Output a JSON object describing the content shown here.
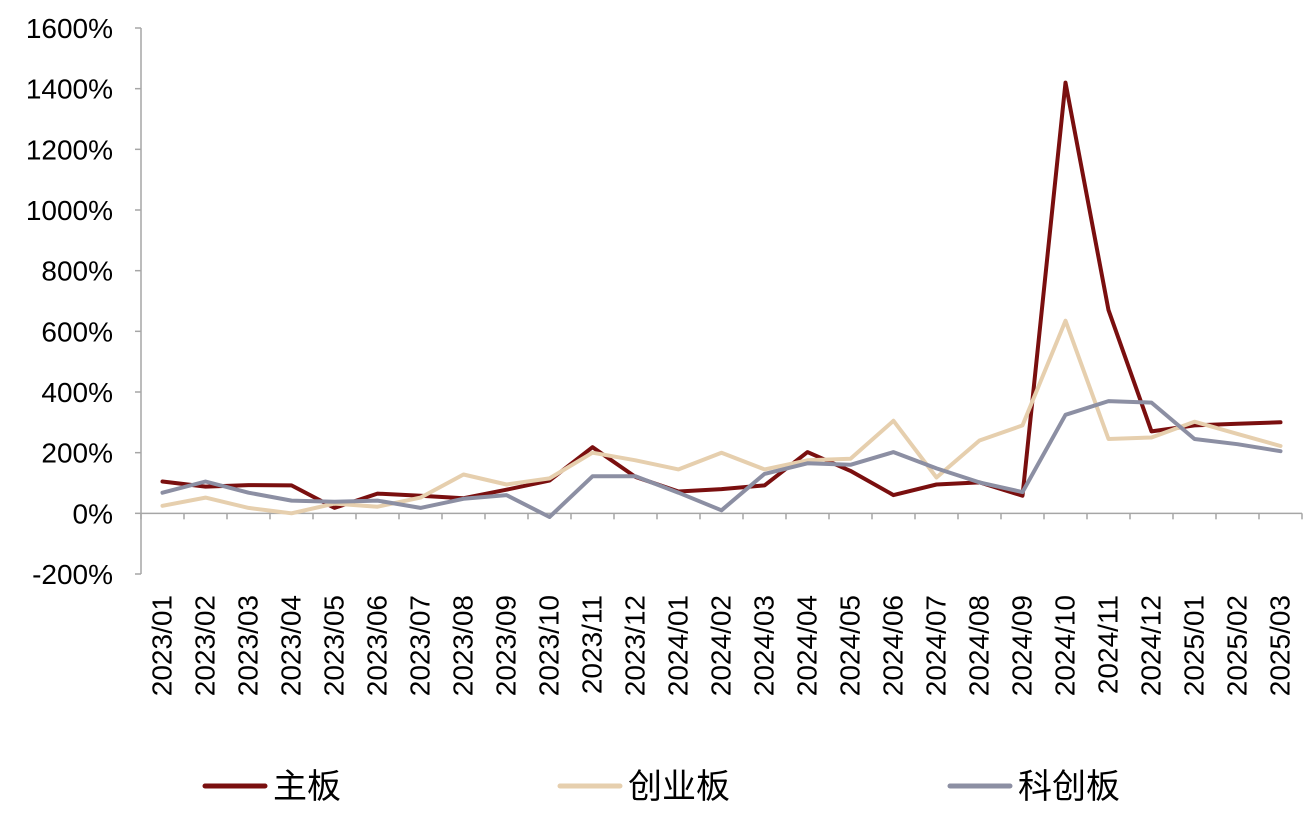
{
  "chart_data": {
    "type": "line",
    "title": "",
    "xlabel": "",
    "ylabel": "",
    "ylim": [
      -200,
      1600
    ],
    "y_tick_step": 200,
    "y_tick_format": "percent",
    "grid": false,
    "legend_position": "bottom",
    "categories": [
      "2023/01",
      "2023/02",
      "2023/03",
      "2023/04",
      "2023/05",
      "2023/06",
      "2023/07",
      "2023/08",
      "2023/09",
      "2023/10",
      "2023/11",
      "2023/12",
      "2024/01",
      "2024/02",
      "2024/03",
      "2024/04",
      "2024/05",
      "2024/06",
      "2024/07",
      "2024/08",
      "2024/09",
      "2024/10",
      "2024/11",
      "2024/12",
      "2025/01",
      "2025/02",
      "2025/03"
    ],
    "series": [
      {
        "name": "主板",
        "color": "#7a0f0f",
        "values": [
          105,
          88,
          93,
          92,
          18,
          65,
          58,
          50,
          78,
          108,
          218,
          120,
          72,
          80,
          92,
          202,
          140,
          60,
          95,
          102,
          58,
          1420,
          670,
          270,
          290,
          295,
          300
        ]
      },
      {
        "name": "创业板",
        "color": "#e6cfae",
        "values": [
          25,
          52,
          18,
          0,
          32,
          22,
          52,
          128,
          95,
          115,
          200,
          175,
          145,
          200,
          145,
          175,
          180,
          305,
          118,
          240,
          290,
          635,
          245,
          250,
          302,
          262,
          222
        ]
      },
      {
        "name": "科创板",
        "color": "#8c8fa3",
        "values": [
          68,
          105,
          68,
          42,
          38,
          42,
          18,
          48,
          60,
          -12,
          122,
          122,
          68,
          10,
          130,
          165,
          160,
          202,
          148,
          102,
          70,
          325,
          370,
          365,
          245,
          228,
          205
        ]
      }
    ]
  }
}
